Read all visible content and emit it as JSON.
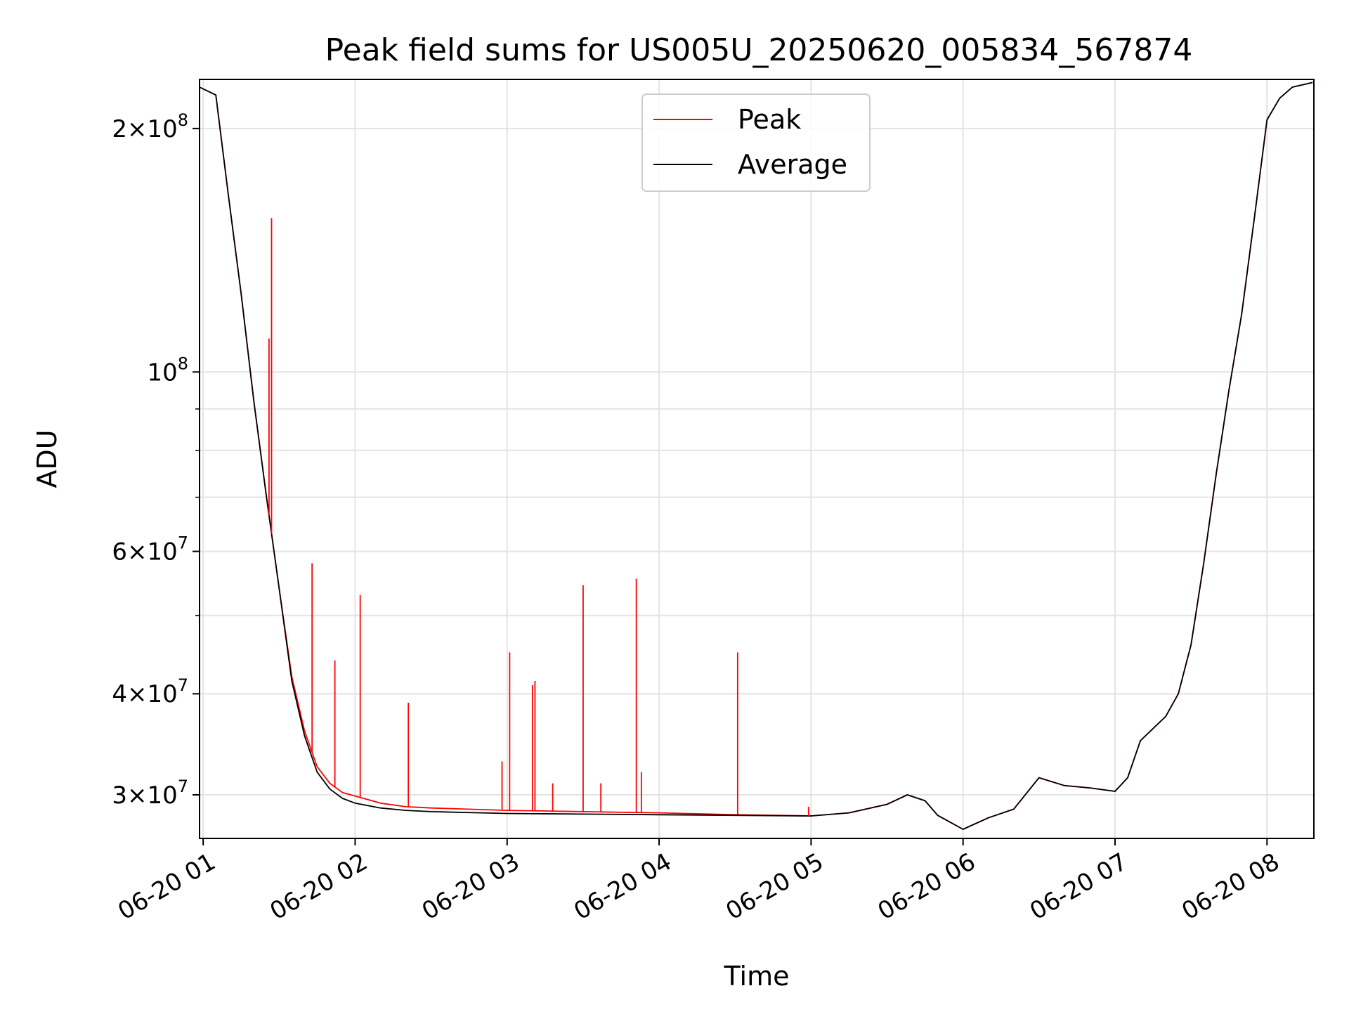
{
  "chart_data": {
    "type": "line",
    "title": "Peak field sums for US005U_20250620_005834_567874",
    "xlabel": "Time",
    "ylabel": "ADU",
    "yscale": "log",
    "ylim": [
      26500000,
      230000000
    ],
    "xlim": [
      "2025-06-20 00:58:34",
      "2025-06-20 08:18:30"
    ],
    "grid": true,
    "legend_position": "top-center",
    "x_ticks": [
      {
        "t": "2025-06-20 01:00",
        "label": "06-20 01"
      },
      {
        "t": "2025-06-20 02:00",
        "label": "06-20 02"
      },
      {
        "t": "2025-06-20 03:00",
        "label": "06-20 03"
      },
      {
        "t": "2025-06-20 04:00",
        "label": "06-20 04"
      },
      {
        "t": "2025-06-20 05:00",
        "label": "06-20 05"
      },
      {
        "t": "2025-06-20 06:00",
        "label": "06-20 06"
      },
      {
        "t": "2025-06-20 07:00",
        "label": "06-20 07"
      },
      {
        "t": "2025-06-20 08:00",
        "label": "06-20 08"
      }
    ],
    "y_ticks_major": [
      {
        "value": 30000000,
        "mant": "3",
        "exp": "7"
      },
      {
        "value": 40000000,
        "mant": "4",
        "exp": "7"
      },
      {
        "value": 60000000,
        "mant": "6",
        "exp": "7"
      },
      {
        "value": 100000000,
        "mant": "",
        "exp": "8"
      },
      {
        "value": 200000000,
        "mant": "2",
        "exp": "8"
      }
    ],
    "y_ticks_minor": [
      50000000,
      70000000,
      80000000,
      90000000
    ],
    "series": [
      {
        "name": "Peak",
        "color": "#ff0000",
        "x": [
          "2025-06-20 00:58:34",
          "2025-06-20 01:05",
          "2025-06-20 01:10",
          "2025-06-20 01:15",
          "2025-06-20 01:20",
          "2025-06-20 01:25",
          "2025-06-20 01:30",
          "2025-06-20 01:35",
          "2025-06-20 01:40",
          "2025-06-20 01:45",
          "2025-06-20 01:50",
          "2025-06-20 01:55",
          "2025-06-20 02:00",
          "2025-06-20 02:10",
          "2025-06-20 02:20",
          "2025-06-20 02:30",
          "2025-06-20 03:00",
          "2025-06-20 03:30",
          "2025-06-20 04:00",
          "2025-06-20 04:30",
          "2025-06-20 05:00",
          "2025-06-20 05:15",
          "2025-06-20 05:30",
          "2025-06-20 05:38",
          "2025-06-20 05:45",
          "2025-06-20 05:50",
          "2025-06-20 06:00",
          "2025-06-20 06:10",
          "2025-06-20 06:20",
          "2025-06-20 06:30",
          "2025-06-20 06:40",
          "2025-06-20 06:50",
          "2025-06-20 07:00",
          "2025-06-20 07:05",
          "2025-06-20 07:10",
          "2025-06-20 07:20",
          "2025-06-20 07:25",
          "2025-06-20 07:30",
          "2025-06-20 07:35",
          "2025-06-20 07:40",
          "2025-06-20 07:45",
          "2025-06-20 07:50",
          "2025-06-20 07:55",
          "2025-06-20 08:00",
          "2025-06-20 08:05",
          "2025-06-20 08:10",
          "2025-06-20 08:18"
        ],
        "values": [
          225000000,
          220000000,
          165000000,
          125000000,
          92000000,
          70000000,
          54000000,
          42000000,
          36000000,
          32500000,
          31000000,
          30200000,
          29900000,
          29300000,
          29000000,
          28900000,
          28700000,
          28600000,
          28500000,
          28350000,
          28250000,
          28500000,
          29200000,
          30000000,
          29500000,
          28300000,
          27200000,
          28100000,
          28800000,
          31500000,
          30800000,
          30600000,
          30300000,
          31500000,
          35000000,
          37500000,
          40000000,
          46000000,
          58000000,
          75000000,
          95000000,
          118000000,
          155000000,
          205000000,
          218000000,
          225000000,
          228000000
        ],
        "spikes": [
          {
            "t": "2025-06-20 01:26",
            "value": 110000000
          },
          {
            "t": "2025-06-20 01:27",
            "value": 155000000
          },
          {
            "t": "2025-06-20 01:43",
            "value": 58000000
          },
          {
            "t": "2025-06-20 01:52",
            "value": 44000000
          },
          {
            "t": "2025-06-20 02:02",
            "value": 53000000
          },
          {
            "t": "2025-06-20 02:21",
            "value": 39000000
          },
          {
            "t": "2025-06-20 02:58",
            "value": 33000000
          },
          {
            "t": "2025-06-20 03:01",
            "value": 45000000
          },
          {
            "t": "2025-06-20 03:10",
            "value": 41000000
          },
          {
            "t": "2025-06-20 03:11",
            "value": 41500000
          },
          {
            "t": "2025-06-20 03:18",
            "value": 31000000
          },
          {
            "t": "2025-06-20 03:30",
            "value": 54500000
          },
          {
            "t": "2025-06-20 03:37",
            "value": 31000000
          },
          {
            "t": "2025-06-20 03:51",
            "value": 55500000
          },
          {
            "t": "2025-06-20 03:53",
            "value": 32000000
          },
          {
            "t": "2025-06-20 04:31",
            "value": 45000000
          },
          {
            "t": "2025-06-20 04:59",
            "value": 29000000
          }
        ]
      },
      {
        "name": "Average",
        "color": "#000000",
        "x": [
          "2025-06-20 00:58:34",
          "2025-06-20 01:05",
          "2025-06-20 01:10",
          "2025-06-20 01:15",
          "2025-06-20 01:20",
          "2025-06-20 01:25",
          "2025-06-20 01:30",
          "2025-06-20 01:35",
          "2025-06-20 01:40",
          "2025-06-20 01:45",
          "2025-06-20 01:50",
          "2025-06-20 01:55",
          "2025-06-20 02:00",
          "2025-06-20 02:10",
          "2025-06-20 02:20",
          "2025-06-20 02:30",
          "2025-06-20 03:00",
          "2025-06-20 03:30",
          "2025-06-20 04:00",
          "2025-06-20 04:30",
          "2025-06-20 05:00",
          "2025-06-20 05:15",
          "2025-06-20 05:30",
          "2025-06-20 05:38",
          "2025-06-20 05:45",
          "2025-06-20 05:50",
          "2025-06-20 06:00",
          "2025-06-20 06:10",
          "2025-06-20 06:20",
          "2025-06-20 06:30",
          "2025-06-20 06:40",
          "2025-06-20 06:50",
          "2025-06-20 07:00",
          "2025-06-20 07:05",
          "2025-06-20 07:10",
          "2025-06-20 07:20",
          "2025-06-20 07:25",
          "2025-06-20 07:30",
          "2025-06-20 07:35",
          "2025-06-20 07:40",
          "2025-06-20 07:45",
          "2025-06-20 07:50",
          "2025-06-20 07:55",
          "2025-06-20 08:00",
          "2025-06-20 08:05",
          "2025-06-20 08:10",
          "2025-06-20 08:18"
        ],
        "values": [
          225000000,
          220000000,
          165000000,
          125000000,
          92000000,
          70000000,
          54000000,
          41500000,
          35500000,
          32000000,
          30500000,
          29700000,
          29300000,
          28900000,
          28700000,
          28600000,
          28450000,
          28400000,
          28350000,
          28300000,
          28250000,
          28500000,
          29200000,
          30000000,
          29500000,
          28300000,
          27200000,
          28100000,
          28800000,
          31500000,
          30800000,
          30600000,
          30300000,
          31500000,
          35000000,
          37500000,
          40000000,
          46000000,
          58000000,
          75000000,
          95000000,
          118000000,
          155000000,
          205000000,
          218000000,
          225000000,
          228000000
        ]
      }
    ]
  }
}
